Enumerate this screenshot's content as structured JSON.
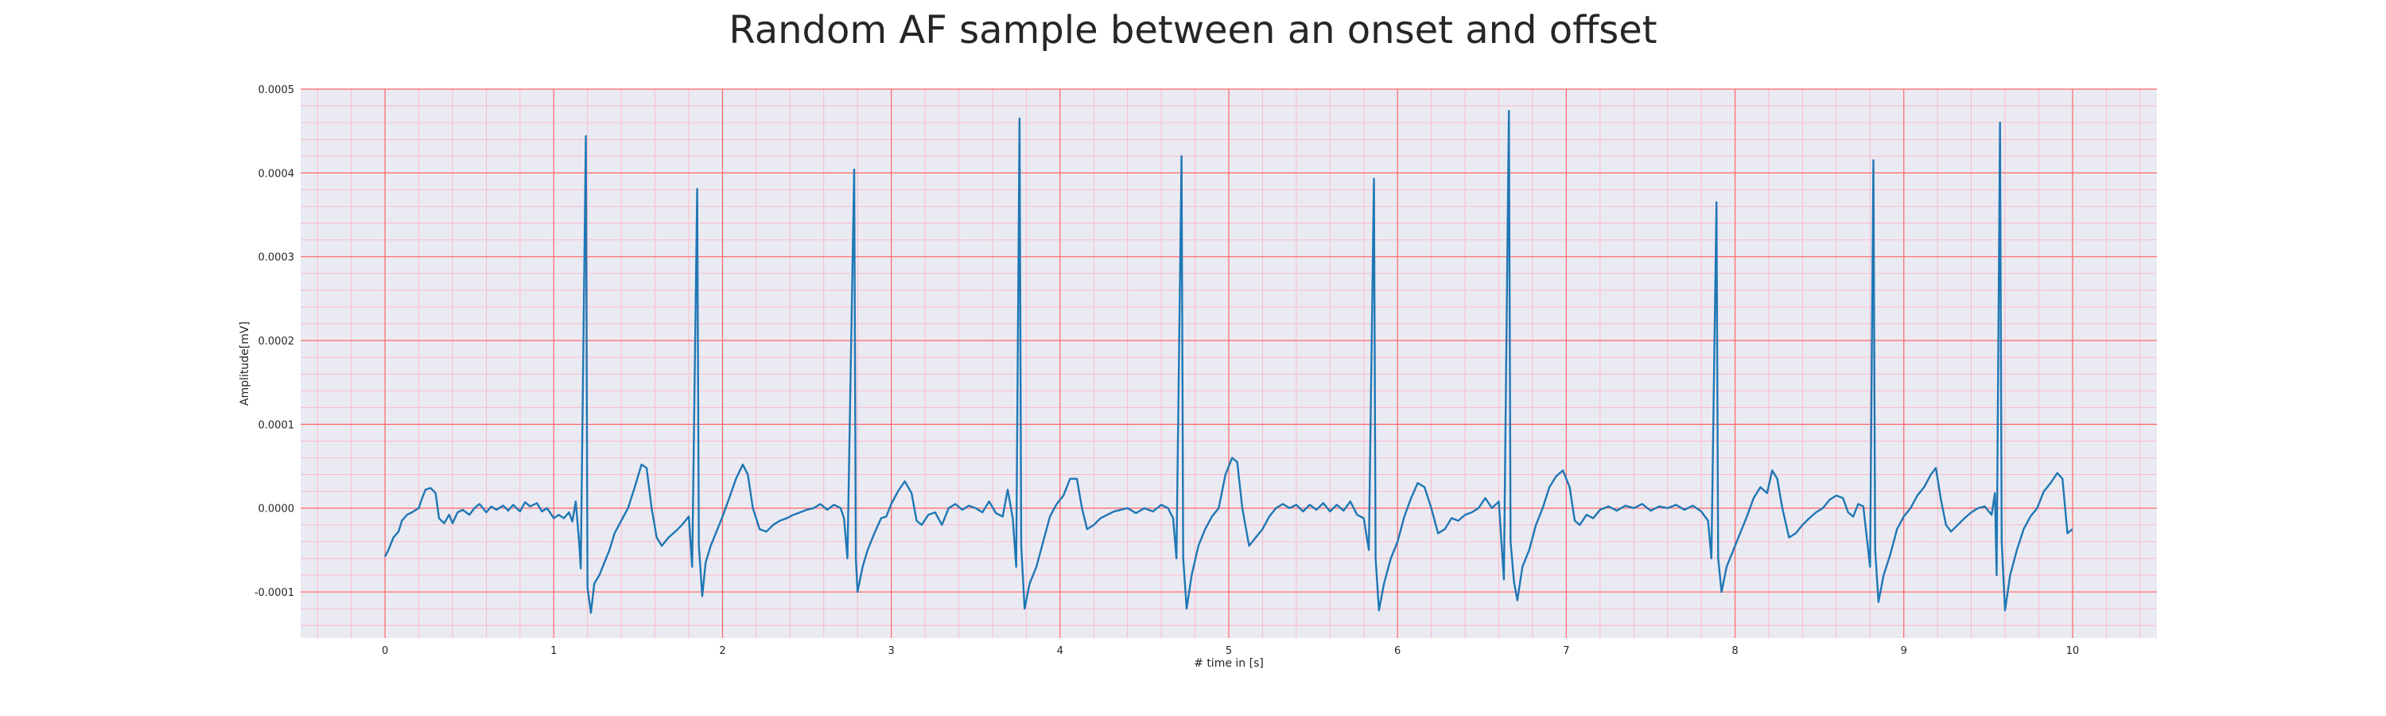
{
  "chart_data": {
    "type": "line",
    "title": "Random AF sample between an onset and offset",
    "xlabel": "# time in [s]",
    "ylabel": "Amplitude[mV]",
    "xlim": [
      -0.5,
      10.5
    ],
    "ylim": [
      -0.000155,
      0.0005
    ],
    "x_ticks": [
      0,
      1,
      2,
      3,
      4,
      5,
      6,
      7,
      8,
      9,
      10
    ],
    "x_tick_labels": [
      "0",
      "1",
      "2",
      "3",
      "4",
      "5",
      "6",
      "7",
      "8",
      "9",
      "10"
    ],
    "y_ticks": [
      -0.0001,
      0.0,
      0.0001,
      0.0002,
      0.0003,
      0.0004,
      0.0005
    ],
    "y_tick_labels": [
      "-0.0001",
      "0.0000",
      "0.0001",
      "0.0002",
      "0.0003",
      "0.0004",
      "0.0005"
    ],
    "grid": true,
    "minor_grid": true,
    "colors": {
      "background": "#eaeaf2",
      "major_grid": "#ff6666",
      "minor_grid": "#ffb0c0",
      "line": "#1f77b4"
    },
    "series": [
      {
        "points": [
          [
            0.0,
            -5.8e-05
          ],
          [
            0.02,
            -5e-05
          ],
          [
            0.05,
            -3.5e-05
          ],
          [
            0.08,
            -2.8e-05
          ],
          [
            0.1,
            -1.5e-05
          ],
          [
            0.13,
            -8e-06
          ],
          [
            0.16,
            -5e-06
          ],
          [
            0.2,
            0.0
          ],
          [
            0.22,
            1.2e-05
          ],
          [
            0.24,
            2.2e-05
          ],
          [
            0.27,
            2.4e-05
          ],
          [
            0.3,
            1.8e-05
          ],
          [
            0.32,
            -1.2e-05
          ],
          [
            0.35,
            -1.8e-05
          ],
          [
            0.38,
            -8e-06
          ],
          [
            0.4,
            -1.8e-05
          ],
          [
            0.43,
            -5e-06
          ],
          [
            0.46,
            -2e-06
          ],
          [
            0.5,
            -8e-06
          ],
          [
            0.53,
            0.0
          ],
          [
            0.56,
            5e-06
          ],
          [
            0.6,
            -5e-06
          ],
          [
            0.63,
            2e-06
          ],
          [
            0.66,
            -2e-06
          ],
          [
            0.7,
            3e-06
          ],
          [
            0.73,
            -3e-06
          ],
          [
            0.76,
            4e-06
          ],
          [
            0.8,
            -4e-06
          ],
          [
            0.83,
            7e-06
          ],
          [
            0.86,
            2e-06
          ],
          [
            0.9,
            6e-06
          ],
          [
            0.93,
            -4e-06
          ],
          [
            0.96,
            0.0
          ],
          [
            1.0,
            -1.2e-05
          ],
          [
            1.03,
            -8e-06
          ],
          [
            1.06,
            -1.2e-05
          ],
          [
            1.09,
            -5e-06
          ],
          [
            1.11,
            -1.6e-05
          ],
          [
            1.13,
            8e-06
          ],
          [
            1.15,
            -4e-05
          ],
          [
            1.16,
            -7.2e-05
          ],
          [
            1.19,
            0.000444
          ],
          [
            1.2,
            -9.5e-05
          ],
          [
            1.22,
            -0.000125
          ],
          [
            1.24,
            -9e-05
          ],
          [
            1.27,
            -8e-05
          ],
          [
            1.3,
            -6.5e-05
          ],
          [
            1.33,
            -5e-05
          ],
          [
            1.36,
            -3e-05
          ],
          [
            1.4,
            -1.5e-05
          ],
          [
            1.44,
            0.0
          ],
          [
            1.48,
            2.5e-05
          ],
          [
            1.52,
            5.2e-05
          ],
          [
            1.55,
            4.8e-05
          ],
          [
            1.58,
            0.0
          ],
          [
            1.61,
            -3.5e-05
          ],
          [
            1.64,
            -4.5e-05
          ],
          [
            1.68,
            -3.5e-05
          ],
          [
            1.72,
            -2.8e-05
          ],
          [
            1.76,
            -2e-05
          ],
          [
            1.8,
            -1e-05
          ],
          [
            1.82,
            -7e-05
          ],
          [
            1.85,
            0.000381
          ],
          [
            1.86,
            -4.5e-05
          ],
          [
            1.88,
            -0.000105
          ],
          [
            1.9,
            -6.5e-05
          ],
          [
            1.93,
            -4.5e-05
          ],
          [
            1.96,
            -3e-05
          ],
          [
            2.0,
            -1e-05
          ],
          [
            2.04,
            1.2e-05
          ],
          [
            2.08,
            3.5e-05
          ],
          [
            2.12,
            5.2e-05
          ],
          [
            2.15,
            4e-05
          ],
          [
            2.18,
            0.0
          ],
          [
            2.22,
            -2.5e-05
          ],
          [
            2.26,
            -2.8e-05
          ],
          [
            2.3,
            -2e-05
          ],
          [
            2.34,
            -1.5e-05
          ],
          [
            2.38,
            -1.2e-05
          ],
          [
            2.42,
            -8e-06
          ],
          [
            2.46,
            -5e-06
          ],
          [
            2.5,
            -2e-06
          ],
          [
            2.54,
            0.0
          ],
          [
            2.58,
            5e-06
          ],
          [
            2.62,
            -2e-06
          ],
          [
            2.66,
            4e-06
          ],
          [
            2.7,
            0.0
          ],
          [
            2.72,
            -1.2e-05
          ],
          [
            2.74,
            -6e-05
          ],
          [
            2.78,
            0.000404
          ],
          [
            2.79,
            -6e-05
          ],
          [
            2.8,
            -0.0001
          ],
          [
            2.83,
            -7e-05
          ],
          [
            2.86,
            -5e-05
          ],
          [
            2.9,
            -3e-05
          ],
          [
            2.94,
            -1.2e-05
          ],
          [
            2.97,
            -1e-05
          ],
          [
            3.0,
            5e-06
          ],
          [
            3.04,
            2e-05
          ],
          [
            3.08,
            3.2e-05
          ],
          [
            3.12,
            1.8e-05
          ],
          [
            3.15,
            -1.5e-05
          ],
          [
            3.18,
            -2e-05
          ],
          [
            3.22,
            -8e-06
          ],
          [
            3.26,
            -5e-06
          ],
          [
            3.3,
            -2e-05
          ],
          [
            3.34,
            0.0
          ],
          [
            3.38,
            5e-06
          ],
          [
            3.42,
            -2e-06
          ],
          [
            3.46,
            3e-06
          ],
          [
            3.5,
            0.0
          ],
          [
            3.54,
            -5e-06
          ],
          [
            3.58,
            8e-06
          ],
          [
            3.62,
            -6e-06
          ],
          [
            3.66,
            -1e-05
          ],
          [
            3.69,
            2.2e-05
          ],
          [
            3.72,
            -1.2e-05
          ],
          [
            3.74,
            -7e-05
          ],
          [
            3.76,
            0.000465
          ],
          [
            3.77,
            -4.5e-05
          ],
          [
            3.79,
            -0.00012
          ],
          [
            3.82,
            -9e-05
          ],
          [
            3.86,
            -7e-05
          ],
          [
            3.9,
            -4e-05
          ],
          [
            3.94,
            -1e-05
          ],
          [
            3.98,
            5e-06
          ],
          [
            4.02,
            1.5e-05
          ],
          [
            4.06,
            3.5e-05
          ],
          [
            4.1,
            3.5e-05
          ],
          [
            4.13,
            0.0
          ],
          [
            4.16,
            -2.5e-05
          ],
          [
            4.2,
            -2e-05
          ],
          [
            4.24,
            -1.2e-05
          ],
          [
            4.28,
            -8e-06
          ],
          [
            4.32,
            -4e-06
          ],
          [
            4.36,
            -2e-06
          ],
          [
            4.4,
            0.0
          ],
          [
            4.45,
            -6e-06
          ],
          [
            4.5,
            0.0
          ],
          [
            4.55,
            -4e-06
          ],
          [
            4.6,
            4e-06
          ],
          [
            4.64,
            0.0
          ],
          [
            4.67,
            -1.2e-05
          ],
          [
            4.69,
            -6e-05
          ],
          [
            4.72,
            0.00042
          ],
          [
            4.73,
            -6e-05
          ],
          [
            4.75,
            -0.00012
          ],
          [
            4.78,
            -8e-05
          ],
          [
            4.82,
            -4.5e-05
          ],
          [
            4.86,
            -2.5e-05
          ],
          [
            4.9,
            -1e-05
          ],
          [
            4.94,
            0.0
          ],
          [
            4.98,
            4e-05
          ],
          [
            5.02,
            6e-05
          ],
          [
            5.05,
            5.5e-05
          ],
          [
            5.08,
            0.0
          ],
          [
            5.12,
            -4.5e-05
          ],
          [
            5.16,
            -3.5e-05
          ],
          [
            5.2,
            -2.5e-05
          ],
          [
            5.24,
            -1e-05
          ],
          [
            5.28,
            0.0
          ],
          [
            5.32,
            5e-06
          ],
          [
            5.36,
            0.0
          ],
          [
            5.4,
            4e-06
          ],
          [
            5.44,
            -4e-06
          ],
          [
            5.48,
            4e-06
          ],
          [
            5.52,
            -2e-06
          ],
          [
            5.56,
            6e-06
          ],
          [
            5.6,
            -4e-06
          ],
          [
            5.64,
            4e-06
          ],
          [
            5.68,
            -3e-06
          ],
          [
            5.72,
            8e-06
          ],
          [
            5.76,
            -8e-06
          ],
          [
            5.8,
            -1.2e-05
          ],
          [
            5.83,
            -5e-05
          ],
          [
            5.86,
            0.000393
          ],
          [
            5.87,
            -6e-05
          ],
          [
            5.89,
            -0.000122
          ],
          [
            5.92,
            -9e-05
          ],
          [
            5.96,
            -6e-05
          ],
          [
            6.0,
            -4e-05
          ],
          [
            6.04,
            -1e-05
          ],
          [
            6.08,
            1.2e-05
          ],
          [
            6.12,
            3e-05
          ],
          [
            6.16,
            2.5e-05
          ],
          [
            6.2,
            0.0
          ],
          [
            6.24,
            -3e-05
          ],
          [
            6.28,
            -2.5e-05
          ],
          [
            6.32,
            -1.2e-05
          ],
          [
            6.36,
            -1.5e-05
          ],
          [
            6.4,
            -8e-06
          ],
          [
            6.44,
            -5e-06
          ],
          [
            6.48,
            0.0
          ],
          [
            6.52,
            1.2e-05
          ],
          [
            6.56,
            0.0
          ],
          [
            6.6,
            8e-06
          ],
          [
            6.63,
            -8.5e-05
          ],
          [
            6.66,
            0.000474
          ],
          [
            6.67,
            -4e-05
          ],
          [
            6.69,
            -8.8e-05
          ],
          [
            6.71,
            -0.00011
          ],
          [
            6.74,
            -7e-05
          ],
          [
            6.78,
            -5e-05
          ],
          [
            6.82,
            -2e-05
          ],
          [
            6.86,
            0.0
          ],
          [
            6.9,
            2.5e-05
          ],
          [
            6.94,
            3.8e-05
          ],
          [
            6.98,
            4.5e-05
          ],
          [
            7.02,
            2.5e-05
          ],
          [
            7.05,
            -1.5e-05
          ],
          [
            7.08,
            -2e-05
          ],
          [
            7.12,
            -8e-06
          ],
          [
            7.16,
            -1.2e-05
          ],
          [
            7.2,
            -2e-06
          ],
          [
            7.25,
            2e-06
          ],
          [
            7.3,
            -3e-06
          ],
          [
            7.35,
            3e-06
          ],
          [
            7.4,
            0.0
          ],
          [
            7.45,
            5e-06
          ],
          [
            7.5,
            -3e-06
          ],
          [
            7.55,
            2e-06
          ],
          [
            7.6,
            0.0
          ],
          [
            7.65,
            4e-06
          ],
          [
            7.7,
            -2e-06
          ],
          [
            7.75,
            3e-06
          ],
          [
            7.8,
            -4e-06
          ],
          [
            7.84,
            -1.5e-05
          ],
          [
            7.86,
            -6e-05
          ],
          [
            7.89,
            0.000365
          ],
          [
            7.9,
            -6e-05
          ],
          [
            7.92,
            -0.0001
          ],
          [
            7.95,
            -7e-05
          ],
          [
            7.99,
            -5e-05
          ],
          [
            8.03,
            -3e-05
          ],
          [
            8.07,
            -1e-05
          ],
          [
            8.11,
            1.2e-05
          ],
          [
            8.15,
            2.5e-05
          ],
          [
            8.19,
            1.8e-05
          ],
          [
            8.22,
            4.5e-05
          ],
          [
            8.25,
            3.5e-05
          ],
          [
            8.28,
            0.0
          ],
          [
            8.32,
            -3.5e-05
          ],
          [
            8.36,
            -3e-05
          ],
          [
            8.4,
            -2e-05
          ],
          [
            8.44,
            -1.2e-05
          ],
          [
            8.48,
            -5e-06
          ],
          [
            8.52,
            0.0
          ],
          [
            8.56,
            1e-05
          ],
          [
            8.6,
            1.5e-05
          ],
          [
            8.64,
            1.2e-05
          ],
          [
            8.67,
            -5e-06
          ],
          [
            8.7,
            -1e-05
          ],
          [
            8.73,
            5e-06
          ],
          [
            8.76,
            2e-06
          ],
          [
            8.8,
            -7e-05
          ],
          [
            8.82,
            0.000415
          ],
          [
            8.83,
            -5e-05
          ],
          [
            8.85,
            -0.000112
          ],
          [
            8.88,
            -8e-05
          ],
          [
            8.92,
            -5.5e-05
          ],
          [
            8.96,
            -2.5e-05
          ],
          [
            9.0,
            -1e-05
          ],
          [
            9.04,
            0.0
          ],
          [
            9.08,
            1.5e-05
          ],
          [
            9.12,
            2.5e-05
          ],
          [
            9.16,
            4e-05
          ],
          [
            9.19,
            4.8e-05
          ],
          [
            9.22,
            1e-05
          ],
          [
            9.25,
            -2e-05
          ],
          [
            9.28,
            -2.8e-05
          ],
          [
            9.32,
            -2e-05
          ],
          [
            9.36,
            -1.2e-05
          ],
          [
            9.4,
            -5e-06
          ],
          [
            9.44,
            0.0
          ],
          [
            9.48,
            2e-06
          ],
          [
            9.52,
            -8e-06
          ],
          [
            9.54,
            1.8e-05
          ],
          [
            9.55,
            -8e-05
          ],
          [
            9.57,
            0.00046
          ],
          [
            9.58,
            -4e-05
          ],
          [
            9.6,
            -0.000122
          ],
          [
            9.63,
            -8e-05
          ],
          [
            9.67,
            -5e-05
          ],
          [
            9.71,
            -2.5e-05
          ],
          [
            9.75,
            -1e-05
          ],
          [
            9.79,
            0.0
          ],
          [
            9.83,
            2e-05
          ],
          [
            9.87,
            3e-05
          ],
          [
            9.91,
            4.2e-05
          ],
          [
            9.94,
            3.5e-05
          ],
          [
            9.97,
            -3e-05
          ],
          [
            10.0,
            -2.5e-05
          ]
        ]
      }
    ]
  }
}
